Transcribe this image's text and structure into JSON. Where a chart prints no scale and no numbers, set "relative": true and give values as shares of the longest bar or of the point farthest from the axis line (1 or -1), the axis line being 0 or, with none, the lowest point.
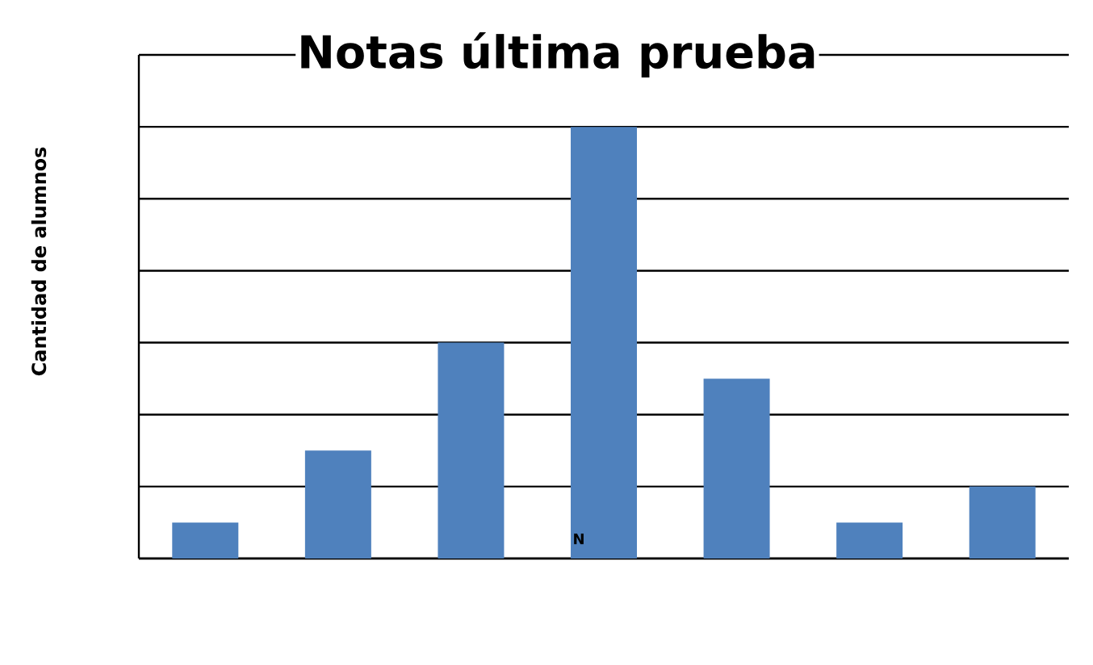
{
  "chart_data": {
    "type": "bar",
    "title": "Notas última prueba",
    "ylabel": "Cantidad de alumnos",
    "xlabel": "N",
    "categories": [
      null,
      null,
      null,
      null,
      null,
      null,
      null
    ],
    "values": [
      0.0833,
      0.25,
      0.5,
      1,
      0.4167,
      0.0833,
      0.1667
    ],
    "color": "#4f81bd",
    "relative": true,
    "grid": "y"
  }
}
